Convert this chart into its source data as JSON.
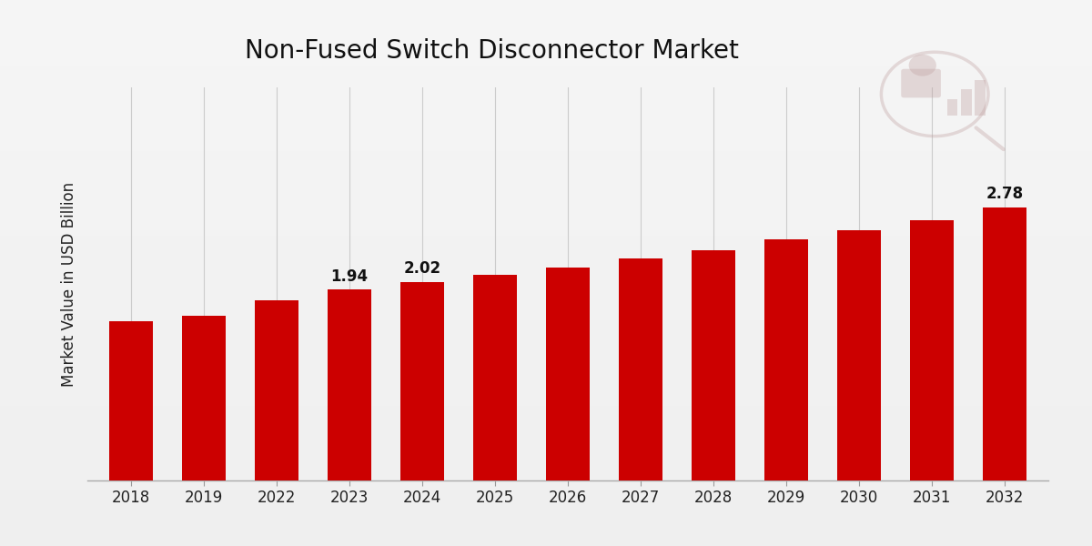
{
  "categories": [
    "2018",
    "2019",
    "2022",
    "2023",
    "2024",
    "2025",
    "2026",
    "2027",
    "2028",
    "2029",
    "2030",
    "2031",
    "2032"
  ],
  "values": [
    1.62,
    1.68,
    1.83,
    1.94,
    2.02,
    2.09,
    2.17,
    2.26,
    2.34,
    2.45,
    2.55,
    2.65,
    2.78
  ],
  "labeled_bars": {
    "2023": "1.94",
    "2024": "2.02",
    "2032": "2.78"
  },
  "bar_color": "#CC0000",
  "title": "Non-Fused Switch Disconnector Market",
  "ylabel": "Market Value in USD Billion",
  "ylim": [
    0,
    4.0
  ],
  "grid_color": "#CCCCCC",
  "title_fontsize": 20,
  "label_fontsize": 12,
  "tick_fontsize": 12,
  "bar_width": 0.6,
  "bg_color": "#EBEBEB",
  "bottom_strip_color": "#CC0000",
  "logo_color": "#C0A0A0",
  "logo_alpha": 0.35
}
